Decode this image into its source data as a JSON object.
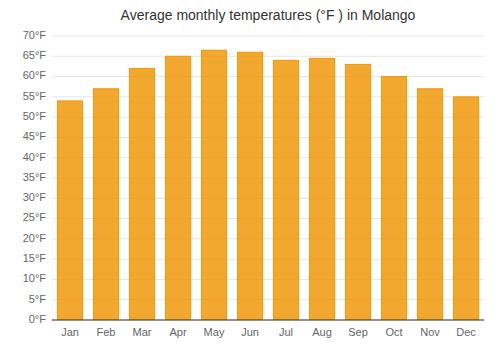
{
  "chart_data": {
    "type": "bar",
    "title": "Average monthly temperatures (°F ) in Molango",
    "categories": [
      "Jan",
      "Feb",
      "Mar",
      "Apr",
      "May",
      "Jun",
      "Jul",
      "Aug",
      "Sep",
      "Oct",
      "Nov",
      "Dec"
    ],
    "values": [
      54,
      57,
      62,
      65,
      66.5,
      66,
      64,
      64.5,
      63,
      60,
      57,
      55
    ],
    "color": "#F0980A",
    "ylim": [
      0,
      70
    ],
    "yticks": [
      {
        "value": 0,
        "label": "0°F"
      },
      {
        "value": 5,
        "label": "5°F"
      },
      {
        "value": 10,
        "label": "10°F"
      },
      {
        "value": 15,
        "label": "15°F"
      },
      {
        "value": 20,
        "label": "20°F"
      },
      {
        "value": 25,
        "label": "25°F"
      },
      {
        "value": 30,
        "label": "30°F"
      },
      {
        "value": 35,
        "label": "35°F"
      },
      {
        "value": 40,
        "label": "40°F"
      },
      {
        "value": 45,
        "label": "45°F"
      },
      {
        "value": 50,
        "label": "50°F"
      },
      {
        "value": 55,
        "label": "55°F"
      },
      {
        "value": 60,
        "label": "60°F"
      },
      {
        "value": 65,
        "label": "65°F"
      },
      {
        "value": 70,
        "label": "70°F"
      }
    ],
    "grid": true
  }
}
